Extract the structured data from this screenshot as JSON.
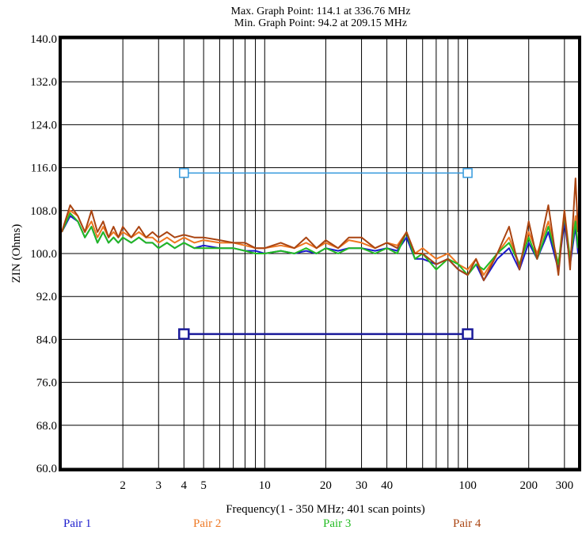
{
  "header": {
    "max_point": "Max. Graph Point: 114.1 at 336.76 MHz",
    "min_point": "Min. Graph Point: 94.2 at 209.15 MHz"
  },
  "chart_data": {
    "type": "line",
    "xscale": "log",
    "xlim": [
      1,
      350
    ],
    "ylim": [
      60,
      140
    ],
    "grid": true,
    "xlabel": "Frequency(1 - 350 MHz; 401 scan points)",
    "ylabel": "ZIN (Ohms)",
    "yticks": [
      {
        "value": 60,
        "label": "60.0"
      },
      {
        "value": 68,
        "label": "68.0"
      },
      {
        "value": 76,
        "label": "76.0"
      },
      {
        "value": 84,
        "label": "84.0"
      },
      {
        "value": 92,
        "label": "92.0"
      },
      {
        "value": 100,
        "label": "100.0"
      },
      {
        "value": 108,
        "label": "108.0"
      },
      {
        "value": 116,
        "label": "116.0"
      },
      {
        "value": 124,
        "label": "124.0"
      },
      {
        "value": 132,
        "label": "132.0"
      },
      {
        "value": 140,
        "label": "140.0"
      }
    ],
    "xticks": [
      {
        "value": 2,
        "label": "2"
      },
      {
        "value": 3,
        "label": "3"
      },
      {
        "value": 4,
        "label": "4"
      },
      {
        "value": 5,
        "label": "5"
      },
      {
        "value": 10,
        "label": "10"
      },
      {
        "value": 20,
        "label": "20"
      },
      {
        "value": 30,
        "label": "30"
      },
      {
        "value": 40,
        "label": "40"
      },
      {
        "value": 100,
        "label": "100"
      },
      {
        "value": 200,
        "label": "200"
      },
      {
        "value": 300,
        "label": "300"
      }
    ],
    "xgrid": [
      2,
      3,
      4,
      5,
      6,
      7,
      8,
      9,
      10,
      20,
      30,
      40,
      50,
      60,
      70,
      80,
      90,
      100,
      200,
      300
    ],
    "limit_lines": [
      {
        "name": "upper-limit",
        "x": [
          4,
          100
        ],
        "y": [
          115,
          115
        ],
        "color": "#3399dd"
      },
      {
        "name": "lower-limit",
        "x": [
          4,
          100
        ],
        "y": [
          85,
          85
        ],
        "color": "#1a1a99"
      }
    ],
    "series": [
      {
        "name": "Pair 1",
        "color": "#1a1acc",
        "x": [
          1,
          1.1,
          1.2,
          1.3,
          1.4,
          1.5,
          1.6,
          1.7,
          1.8,
          1.9,
          2,
          2.2,
          2.4,
          2.6,
          2.8,
          3,
          3.3,
          3.6,
          4,
          4.5,
          5,
          6,
          7,
          8,
          9,
          10,
          12,
          14,
          16,
          18,
          20,
          23,
          26,
          30,
          35,
          40,
          45,
          50,
          55,
          60,
          70,
          80,
          90,
          100,
          110,
          120,
          140,
          160,
          180,
          200,
          220,
          250,
          280,
          300,
          320,
          340,
          350
        ],
        "y": [
          104,
          107,
          106,
          103,
          105,
          102,
          104,
          102,
          103,
          102,
          103,
          102,
          103,
          102,
          102,
          101,
          102,
          101,
          102,
          101,
          101.5,
          101,
          101,
          100.5,
          100.5,
          100,
          100.5,
          100,
          100.5,
          100,
          101,
          100.5,
          101,
          101,
          100.5,
          101,
          100.5,
          103,
          99,
          99,
          98,
          99,
          97,
          96,
          98,
          95,
          99,
          101,
          97,
          102,
          99,
          104,
          97,
          106,
          98,
          105,
          100
        ]
      },
      {
        "name": "Pair 2",
        "color": "#ee7722",
        "x": [
          1,
          1.1,
          1.2,
          1.3,
          1.4,
          1.5,
          1.6,
          1.7,
          1.8,
          1.9,
          2,
          2.2,
          2.4,
          2.6,
          2.8,
          3,
          3.3,
          3.6,
          4,
          4.5,
          5,
          6,
          7,
          8,
          9,
          10,
          12,
          14,
          16,
          18,
          20,
          23,
          26,
          30,
          35,
          40,
          45,
          50,
          55,
          60,
          70,
          80,
          90,
          100,
          110,
          120,
          140,
          160,
          180,
          200,
          220,
          250,
          280,
          300,
          320,
          340,
          350
        ],
        "y": [
          104,
          108,
          107,
          104,
          106,
          103,
          105,
          103,
          104,
          103,
          104,
          103,
          104,
          103,
          103,
          102,
          103,
          102,
          103,
          102,
          102.5,
          102,
          102,
          101.5,
          101,
          101,
          101.5,
          101,
          102,
          101,
          102,
          101,
          102.5,
          102,
          101,
          102,
          101.5,
          104,
          100,
          101,
          99,
          100,
          98,
          97,
          99,
          96,
          100,
          103,
          98,
          104,
          100,
          106,
          98,
          108,
          99,
          107,
          101
        ]
      },
      {
        "name": "Pair 3",
        "color": "#22bb22",
        "x": [
          1,
          1.1,
          1.2,
          1.3,
          1.4,
          1.5,
          1.6,
          1.7,
          1.8,
          1.9,
          2,
          2.2,
          2.4,
          2.6,
          2.8,
          3,
          3.3,
          3.6,
          4,
          4.5,
          5,
          6,
          7,
          8,
          9,
          10,
          12,
          14,
          16,
          18,
          20,
          23,
          26,
          30,
          35,
          40,
          45,
          50,
          55,
          60,
          70,
          80,
          90,
          100,
          110,
          120,
          140,
          160,
          180,
          200,
          220,
          250,
          280,
          300,
          320,
          340,
          350
        ],
        "y": [
          104,
          107.5,
          106,
          103,
          105,
          102,
          104,
          102,
          103,
          102,
          103,
          102,
          103,
          102,
          102,
          101,
          102,
          101,
          102,
          101,
          101,
          101,
          101,
          100.5,
          100,
          100,
          100.5,
          100,
          101,
          100,
          101,
          100,
          101,
          101,
          100,
          101,
          100,
          104,
          99,
          100,
          97,
          99,
          98,
          96,
          98,
          97,
          100,
          102,
          98,
          103,
          99,
          105,
          98,
          107,
          99,
          106,
          101
        ]
      },
      {
        "name": "Pair 4",
        "color": "#aa4411",
        "x": [
          1,
          1.1,
          1.2,
          1.3,
          1.4,
          1.5,
          1.6,
          1.7,
          1.8,
          1.9,
          2,
          2.2,
          2.4,
          2.6,
          2.8,
          3,
          3.3,
          3.6,
          4,
          4.5,
          5,
          6,
          7,
          8,
          9,
          10,
          12,
          14,
          16,
          18,
          20,
          23,
          26,
          30,
          35,
          40,
          45,
          50,
          55,
          60,
          70,
          80,
          90,
          100,
          110,
          120,
          140,
          160,
          180,
          200,
          220,
          250,
          280,
          300,
          320,
          340,
          350
        ],
        "y": [
          104,
          109,
          107,
          104,
          108,
          104,
          106,
          103,
          105,
          103,
          105,
          103,
          105,
          103,
          104,
          103,
          104,
          103,
          103.5,
          103,
          103,
          102.5,
          102,
          102,
          101,
          101,
          102,
          101,
          103,
          101,
          102.5,
          101,
          103,
          103,
          101,
          102,
          101,
          104,
          100,
          100,
          98,
          99,
          97,
          96,
          99,
          95,
          100,
          105,
          97,
          106,
          99,
          109,
          96,
          108,
          97,
          114,
          104
        ]
      }
    ]
  },
  "legend": [
    {
      "label": "Pair 1",
      "color": "#1a1acc"
    },
    {
      "label": "Pair 2",
      "color": "#ee7722"
    },
    {
      "label": "Pair 3",
      "color": "#22bb22"
    },
    {
      "label": "Pair 4",
      "color": "#aa4411"
    }
  ]
}
